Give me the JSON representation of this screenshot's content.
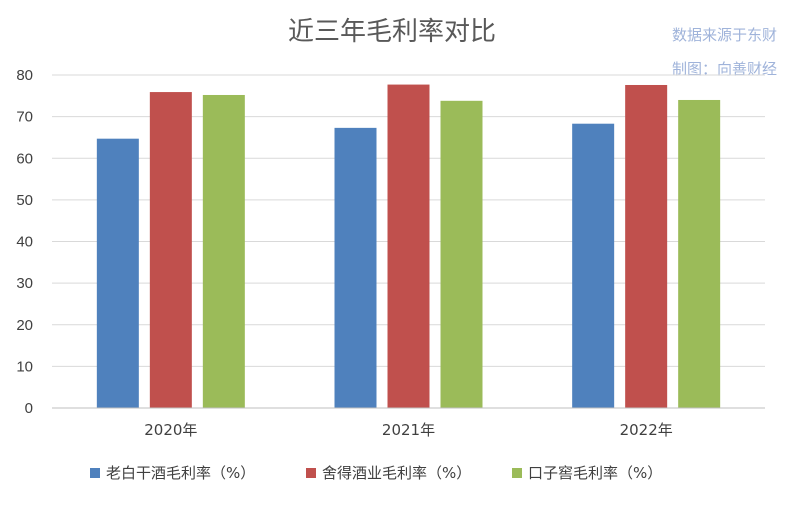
{
  "chart_data": {
    "type": "bar",
    "title": "近三年毛利率对比",
    "source": [
      "数据来源于东财",
      "制图：向善财经"
    ],
    "categories": [
      "2020年",
      "2021年",
      "2022年"
    ],
    "series": [
      {
        "name": "老白干酒毛利率（%）",
        "color": "#4f81bd",
        "values": [
          64.7,
          67.3,
          68.3
        ]
      },
      {
        "name": "舍得酒业毛利率（%）",
        "color": "#c0504d",
        "values": [
          75.9,
          77.7,
          77.6
        ]
      },
      {
        "name": "口子窖毛利率（%）",
        "color": "#9bbb59",
        "values": [
          75.2,
          73.8,
          74.0
        ]
      }
    ],
    "ylim": [
      0,
      80
    ],
    "yticks": [
      0,
      10,
      20,
      30,
      40,
      50,
      60,
      70,
      80
    ],
    "grid": true,
    "legend": "bottom"
  }
}
